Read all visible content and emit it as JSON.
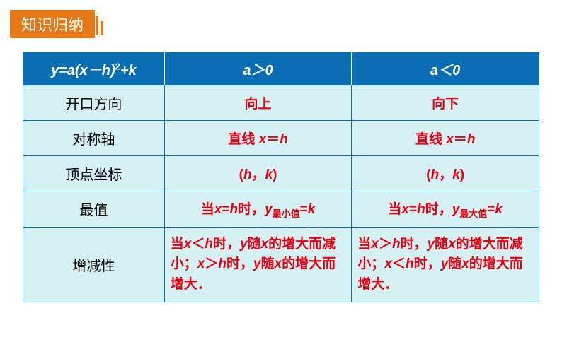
{
  "header": {
    "title": "知识归纳"
  },
  "table": {
    "background_color": "#d4f0f3",
    "header_bg": "#0a6eb4",
    "header_color": "#ffffff",
    "border_color": "#0a6eb4",
    "value_color": "#e60012",
    "label_color": "#000000",
    "headers": {
      "formula_html": "<span class='italic-var'>y</span>=<span class='italic-var'>a</span>(<span class='italic-var'>x</span>－<span class='italic-var'>h</span>)<span class='sup'>2</span>+<span class='italic-var'>k</span>",
      "col2_html": "<span class='italic-var'>a</span>＞0",
      "col3_html": "<span class='italic-var'>a</span>＜0"
    },
    "rows": [
      {
        "label": "开口方向",
        "a_pos": "向上",
        "a_neg": "向下"
      },
      {
        "label": "对称轴",
        "a_pos_html": "直线 <span class='italic-var'>x</span>＝<span class='italic-var'>h</span>",
        "a_neg_html": "直线 <span class='italic-var'>x</span>＝<span class='italic-var'>h</span>"
      },
      {
        "label": "顶点坐标",
        "a_pos_html": "(<span class='italic-var'>h</span>，<span class='italic-var'>k</span>)",
        "a_neg_html": "(<span class='italic-var'>h</span>，<span class='italic-var'>k</span>)"
      },
      {
        "label": "最值",
        "a_pos_html": "当<span class='italic-var'>x</span>=<span class='italic-var'>h</span>时，<span class='italic-var'>y</span><span class='sub'>最小值</span>=<span class='italic-var'>k</span>",
        "a_neg_html": "当<span class='italic-var'>x</span>=<span class='italic-var'>h</span>时，<span class='italic-var'>y</span><span class='sub'>最大值</span>=<span class='italic-var'>k</span>"
      },
      {
        "label": "增减性",
        "a_pos_html": "当<span class='italic-var'>x</span>＜<span class='italic-var'>h</span>时，<span class='italic-var'>y</span>随<span class='italic-var'>x</span>的增大而减小；<span class='italic-var'>x</span>＞<span class='italic-var'>h</span>时，<span class='italic-var'>y</span>随<span class='italic-var'>x</span>的增大而增大．",
        "a_neg_html": "当<span class='italic-var'>x</span>＞<span class='italic-var'>h</span>时，<span class='italic-var'>y</span>随<span class='italic-var'>x</span>的增大而减小；<span class='italic-var'>x</span>＜<span class='italic-var'>h</span>时，<span class='italic-var'>y</span>随<span class='italic-var'>x</span>的增大而增大．",
        "multiline": true
      }
    ]
  }
}
